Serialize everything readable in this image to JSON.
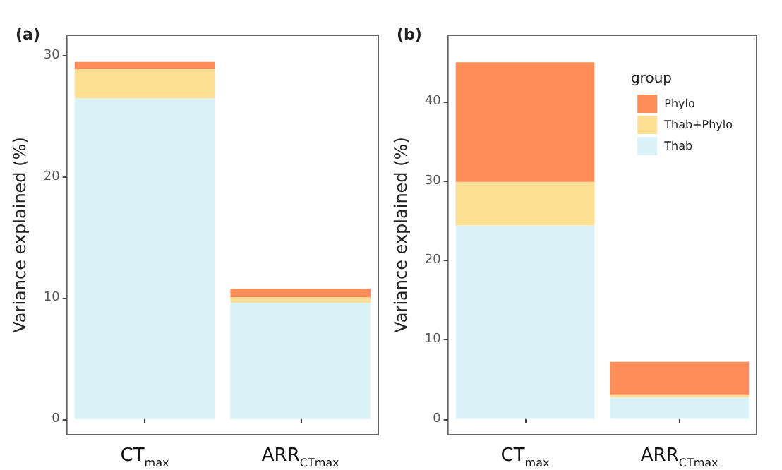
{
  "chart_data": [
    {
      "type": "bar",
      "title": "(a)",
      "ylabel": "Variance explained (%)",
      "categories": [
        "CT$_{max}$",
        "ARR$_{CTmax}$"
      ],
      "stacked": true,
      "ylim": [
        -1.3,
        31.7
      ],
      "yticks": [
        0,
        10,
        20,
        30
      ],
      "grid": false,
      "legend": false,
      "series": [
        {
          "color": "#d9f1f7",
          "values": [
            26.5,
            9.6
          ]
        },
        {
          "color": "#fddf96",
          "values": [
            2.4,
            0.45
          ]
        },
        {
          "color": "#fc8d59",
          "values": [
            0.6,
            0.7
          ]
        }
      ]
    },
    {
      "type": "bar",
      "title": "(b)",
      "ylabel": "Variance explained (%)",
      "legend_title": "group",
      "categories": [
        "CT$_{max}$",
        "ARR$_{CTmax}$"
      ],
      "stacked": true,
      "ylim": [
        -2.0,
        48.4
      ],
      "yticks": [
        0,
        10,
        20,
        30,
        40
      ],
      "grid": false,
      "legend": "top right",
      "series": [
        {
          "name": "Thab",
          "color": "#d9f1f7",
          "values": [
            24.4,
            2.7
          ]
        },
        {
          "name": "Thab+Phylo",
          "color": "#fddf96",
          "values": [
            5.5,
            0.3
          ]
        },
        {
          "name": "Phylo",
          "color": "#fc8d59",
          "values": [
            15.1,
            4.2
          ]
        }
      ]
    }
  ]
}
